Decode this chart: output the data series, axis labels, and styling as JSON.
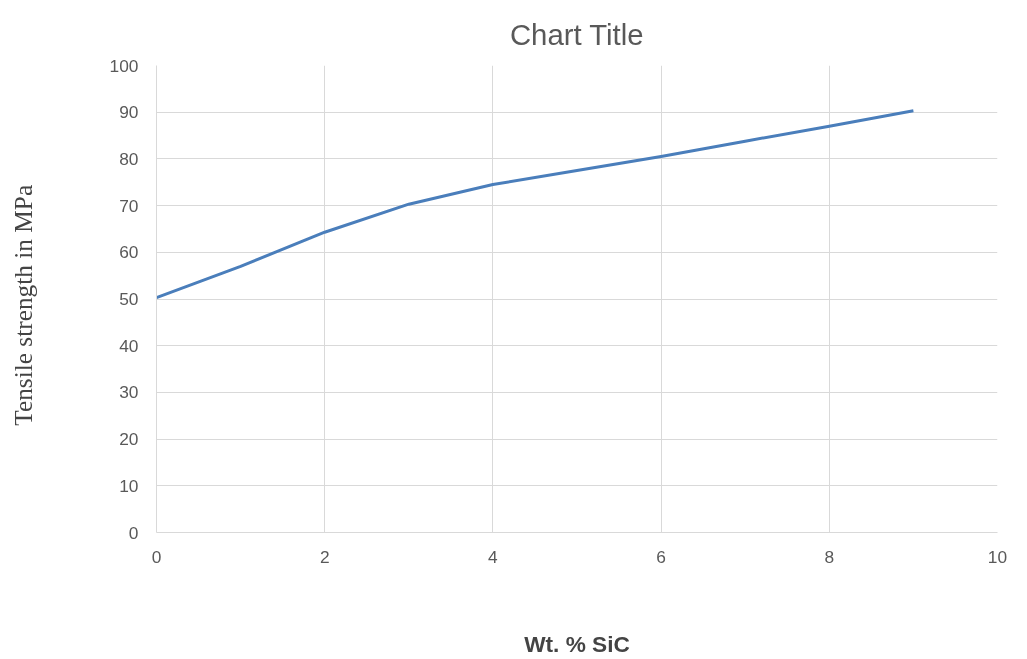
{
  "chart_data": {
    "type": "line",
    "title": "Chart Title",
    "xlabel": "Wt. % SiC",
    "ylabel": "Tensile strength in   MPa",
    "x": [
      0,
      1,
      2,
      3,
      4,
      5,
      6,
      7,
      8,
      9
    ],
    "series": [
      {
        "color": "#4a7ebb",
        "values": [
          50.3,
          57,
          64.3,
          70.3,
          74.5,
          77.5,
          80.5,
          83.8,
          87,
          90.3
        ]
      }
    ],
    "xlim": [
      0,
      10
    ],
    "xticks": [
      0,
      2,
      4,
      6,
      8,
      10
    ],
    "ylim": [
      0,
      100
    ],
    "yticks": [
      0,
      10,
      20,
      30,
      40,
      50,
      60,
      70,
      80,
      90,
      100
    ],
    "grid": true,
    "marker": "none",
    "line_style": "solid"
  }
}
